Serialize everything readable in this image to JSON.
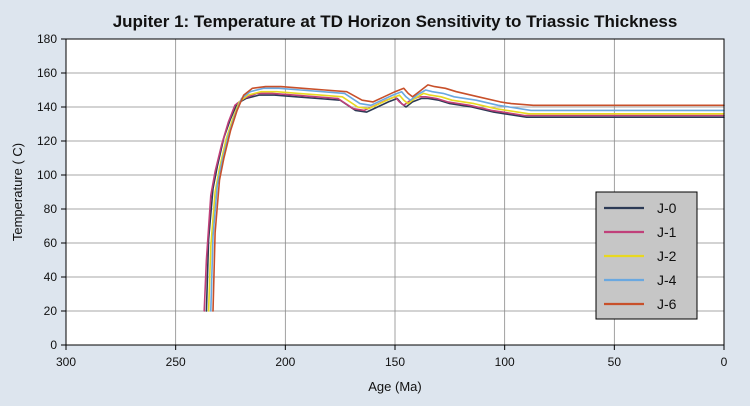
{
  "chart_data": {
    "type": "line",
    "title": "Jupiter 1: Temperature at TD Horizon Sensitivity to Triassic Thickness",
    "xlabel": "Age (Ma)",
    "ylabel": "Temperature ( C)",
    "xlim": [
      300,
      0
    ],
    "ylim": [
      0,
      180
    ],
    "x_ticks": [
      300,
      250,
      200,
      150,
      100,
      50,
      0
    ],
    "y_ticks": [
      0,
      20,
      40,
      60,
      80,
      100,
      120,
      140,
      160,
      180
    ],
    "grid": true,
    "legend_position": "bottom-right",
    "series": [
      {
        "name": "J-0",
        "color": "#2c3a55",
        "x": [
          236,
          235,
          233,
          231,
          228,
          225,
          222,
          218,
          212,
          205,
          195,
          185,
          175,
          168,
          163,
          158,
          153,
          149,
          147,
          145,
          142,
          138,
          135,
          130,
          125,
          115,
          105,
          100,
          90,
          70,
          50,
          30,
          0
        ],
        "y": [
          20,
          62,
          92,
          105,
          122,
          133,
          142,
          145,
          147,
          147,
          146,
          145,
          144,
          138,
          137,
          140,
          143,
          145,
          142,
          140,
          143,
          145,
          145,
          144,
          142,
          140,
          137,
          136,
          134,
          134,
          134,
          134,
          134
        ]
      },
      {
        "name": "J-1",
        "color": "#c0407a",
        "x": [
          237,
          236,
          234,
          232,
          229,
          226,
          223,
          219,
          213,
          206,
          196,
          186,
          176,
          169,
          164,
          159,
          154,
          150,
          148,
          146,
          143,
          139,
          136,
          131,
          126,
          116,
          106,
          101,
          91,
          71,
          51,
          31,
          0
        ],
        "y": [
          20,
          50,
          88,
          102,
          118,
          131,
          141,
          145,
          148,
          148,
          147,
          146,
          145,
          139,
          138,
          141,
          144,
          146,
          143,
          141,
          144,
          146,
          146,
          145,
          143,
          141,
          138,
          137,
          135,
          135,
          135,
          135,
          135
        ]
      },
      {
        "name": "J-2",
        "color": "#e8d820",
        "x": [
          235,
          234,
          232,
          230,
          227,
          224,
          221,
          217,
          211,
          204,
          194,
          184,
          174,
          167,
          162,
          157,
          152,
          148,
          146,
          144,
          141,
          137,
          134,
          129,
          124,
          114,
          104,
          99,
          89,
          69,
          49,
          29,
          0
        ],
        "y": [
          20,
          58,
          90,
          104,
          121,
          133,
          143,
          147,
          149,
          149,
          148,
          147,
          146,
          140,
          139,
          142,
          145,
          147,
          144,
          142,
          145,
          148,
          147,
          146,
          144,
          142,
          139,
          138,
          136,
          136,
          136,
          136,
          136
        ]
      },
      {
        "name": "J-4",
        "color": "#6aa8e0",
        "x": [
          234,
          233,
          231,
          229,
          226,
          223,
          220,
          216,
          210,
          203,
          193,
          183,
          173,
          166,
          161,
          156,
          151,
          147,
          145,
          143,
          140,
          136,
          133,
          128,
          123,
          113,
          103,
          98,
          88,
          68,
          48,
          28,
          0
        ],
        "y": [
          20,
          64,
          94,
          107,
          123,
          135,
          145,
          149,
          151,
          151,
          150,
          149,
          148,
          142,
          141,
          144,
          147,
          149,
          146,
          144,
          147,
          150,
          149,
          148,
          146,
          144,
          141,
          140,
          138,
          138,
          138,
          138,
          138
        ]
      },
      {
        "name": "J-6",
        "color": "#c8502a",
        "x": [
          233,
          232,
          230,
          228,
          225,
          222,
          219,
          215,
          209,
          202,
          192,
          182,
          172,
          165,
          160,
          155,
          150,
          146,
          144,
          142,
          139,
          135,
          132,
          127,
          122,
          112,
          102,
          97,
          87,
          67,
          47,
          27,
          0
        ],
        "y": [
          20,
          66,
          97,
          110,
          126,
          138,
          147,
          151,
          152,
          152,
          151,
          150,
          149,
          144,
          143,
          146,
          149,
          151,
          148,
          146,
          149,
          153,
          152,
          151,
          149,
          146,
          143,
          142,
          141,
          141,
          141,
          141,
          141
        ]
      }
    ]
  }
}
